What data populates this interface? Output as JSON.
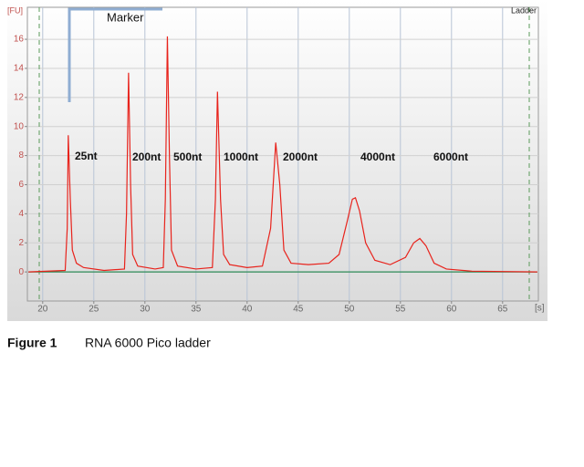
{
  "chart_data": {
    "type": "line",
    "y_label": "[FU]",
    "x_label": "[s]",
    "sample": "Ladder",
    "marker_label": "Marker",
    "annotations": [
      "25nt",
      "200nt",
      "500nt",
      "1000nt",
      "2000nt",
      "4000nt",
      "6000nt"
    ],
    "caption_number": "Figure 1",
    "caption_text": "RNA 6000 Pico ladder",
    "xlim": [
      18.5,
      68.5
    ],
    "ylim": [
      -2,
      18.2
    ],
    "xticks": [
      20,
      25,
      30,
      35,
      40,
      45,
      50,
      55,
      60,
      65
    ],
    "yticks": [
      0,
      2,
      4,
      6,
      8,
      10,
      12,
      14,
      16
    ],
    "grid": true,
    "series": [
      {
        "color": "#2e8b57",
        "x": [
          18.6,
          68.4
        ],
        "values": [
          0,
          0
        ]
      },
      {
        "color": "#e8231c",
        "x": [
          18.6,
          22.2,
          22.4,
          22.5,
          22.7,
          22.9,
          23.3,
          24,
          26,
          28,
          28.2,
          28.4,
          28.6,
          28.8,
          29.3,
          31,
          31.8,
          32.0,
          32.2,
          32.4,
          32.6,
          33.2,
          35,
          36.6,
          36.9,
          37.1,
          37.4,
          37.7,
          38.3,
          40,
          41.5,
          42.3,
          42.8,
          43.2,
          43.6,
          44.3,
          46,
          48,
          49,
          49.8,
          50.3,
          50.6,
          51,
          51.6,
          52.5,
          54,
          55.5,
          56.3,
          56.9,
          57.5,
          58.3,
          59.5,
          62,
          68.4
        ],
        "values": [
          0,
          0.1,
          3,
          9.4,
          5,
          1.5,
          0.6,
          0.3,
          0.1,
          0.2,
          4,
          13.7,
          6,
          1.2,
          0.4,
          0.2,
          0.3,
          5,
          16.2,
          8,
          1.5,
          0.4,
          0.2,
          0.3,
          5,
          12.4,
          5,
          1.2,
          0.5,
          0.3,
          0.4,
          3,
          8.9,
          6,
          1.5,
          0.6,
          0.5,
          0.6,
          1.2,
          3.5,
          5.0,
          5.1,
          4.2,
          2,
          0.8,
          0.5,
          1,
          2,
          2.3,
          1.8,
          0.6,
          0.2,
          0.05,
          0
        ]
      }
    ]
  }
}
